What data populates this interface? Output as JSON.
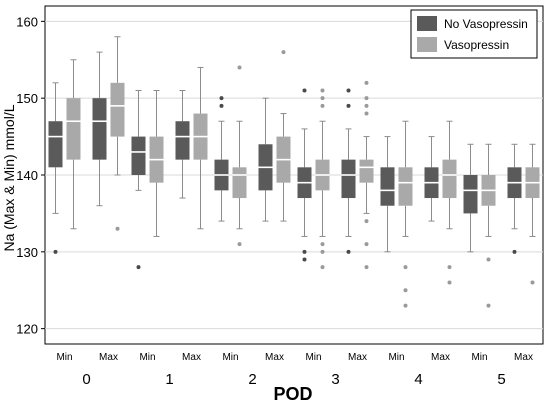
{
  "chart_data": {
    "type": "box",
    "ylabel": "Na (Max & Min) mmol/L",
    "xlabel": "POD",
    "ylim": [
      118,
      162
    ],
    "yticks": [
      120,
      130,
      140,
      150,
      160
    ],
    "grid": true,
    "legend_position": "top-right",
    "colors": {
      "No Vasopressin": "#5a5a5a",
      "Vasopressin": "#a9a9a9"
    },
    "groups": [
      "0",
      "1",
      "2",
      "3",
      "4",
      "5"
    ],
    "subgroups": [
      "Min",
      "Max"
    ],
    "series": [
      {
        "name": "No Vasopressin",
        "boxes": [
          {
            "group": "0",
            "sub": "Min",
            "lw": 135,
            "q1": 141,
            "med": 145,
            "q3": 147,
            "uw": 152,
            "outliers": [
              130
            ]
          },
          {
            "group": "0",
            "sub": "Max",
            "lw": 136,
            "q1": 142,
            "med": 147,
            "q3": 150,
            "uw": 156,
            "outliers": []
          },
          {
            "group": "1",
            "sub": "Min",
            "lw": 138,
            "q1": 140,
            "med": 143,
            "q3": 145,
            "uw": 151,
            "outliers": [
              128
            ]
          },
          {
            "group": "1",
            "sub": "Max",
            "lw": 137,
            "q1": 142,
            "med": 145,
            "q3": 147,
            "uw": 151,
            "outliers": []
          },
          {
            "group": "2",
            "sub": "Min",
            "lw": 134,
            "q1": 138,
            "med": 140,
            "q3": 142,
            "uw": 147,
            "outliers": [
              149,
              150
            ]
          },
          {
            "group": "2",
            "sub": "Max",
            "lw": 134,
            "q1": 138,
            "med": 141,
            "q3": 144,
            "uw": 150,
            "outliers": []
          },
          {
            "group": "3",
            "sub": "Min",
            "lw": 132,
            "q1": 137,
            "med": 139,
            "q3": 141,
            "uw": 146,
            "outliers": [
              129,
              130,
              151
            ]
          },
          {
            "group": "3",
            "sub": "Max",
            "lw": 132,
            "q1": 137,
            "med": 140,
            "q3": 142,
            "uw": 146,
            "outliers": [
              130,
              149,
              151
            ]
          },
          {
            "group": "4",
            "sub": "Min",
            "lw": 130,
            "q1": 136,
            "med": 138,
            "q3": 141,
            "uw": 145,
            "outliers": []
          },
          {
            "group": "4",
            "sub": "Max",
            "lw": 134,
            "q1": 137,
            "med": 139,
            "q3": 141,
            "uw": 145,
            "outliers": []
          },
          {
            "group": "5",
            "sub": "Min",
            "lw": 130,
            "q1": 135,
            "med": 138,
            "q3": 140,
            "uw": 144,
            "outliers": []
          },
          {
            "group": "5",
            "sub": "Max",
            "lw": 133,
            "q1": 137,
            "med": 139,
            "q3": 141,
            "uw": 144,
            "outliers": [
              130
            ]
          }
        ]
      },
      {
        "name": "Vasopressin",
        "boxes": [
          {
            "group": "0",
            "sub": "Min",
            "lw": 133,
            "q1": 142,
            "med": 147,
            "q3": 150,
            "uw": 155,
            "outliers": []
          },
          {
            "group": "0",
            "sub": "Max",
            "lw": 140,
            "q1": 145,
            "med": 149,
            "q3": 152,
            "uw": 158,
            "outliers": [
              133
            ]
          },
          {
            "group": "1",
            "sub": "Min",
            "lw": 132,
            "q1": 139,
            "med": 142,
            "q3": 145,
            "uw": 151,
            "outliers": []
          },
          {
            "group": "1",
            "sub": "Max",
            "lw": 133,
            "q1": 142,
            "med": 145,
            "q3": 148,
            "uw": 154,
            "outliers": []
          },
          {
            "group": "2",
            "sub": "Min",
            "lw": 133,
            "q1": 137,
            "med": 140,
            "q3": 141,
            "uw": 147,
            "outliers": [
              131,
              154
            ]
          },
          {
            "group": "2",
            "sub": "Max",
            "lw": 134,
            "q1": 139,
            "med": 142,
            "q3": 145,
            "uw": 148,
            "outliers": [
              156
            ]
          },
          {
            "group": "3",
            "sub": "Min",
            "lw": 132,
            "q1": 138,
            "med": 140,
            "q3": 142,
            "uw": 147,
            "outliers": [
              128,
              130,
              131,
              149,
              150,
              151
            ]
          },
          {
            "group": "3",
            "sub": "Max",
            "lw": 135,
            "q1": 139,
            "med": 141,
            "q3": 142,
            "uw": 145,
            "outliers": [
              128,
              131,
              134,
              148,
              149,
              150,
              152
            ]
          },
          {
            "group": "4",
            "sub": "Min",
            "lw": 132,
            "q1": 136,
            "med": 139,
            "q3": 141,
            "uw": 147,
            "outliers": [
              123,
              125,
              128
            ]
          },
          {
            "group": "4",
            "sub": "Max",
            "lw": 133,
            "q1": 137,
            "med": 140,
            "q3": 142,
            "uw": 147,
            "outliers": [
              126,
              128
            ]
          },
          {
            "group": "5",
            "sub": "Min",
            "lw": 132,
            "q1": 136,
            "med": 138,
            "q3": 140,
            "uw": 144,
            "outliers": [
              123,
              129
            ]
          },
          {
            "group": "5",
            "sub": "Max",
            "lw": 132,
            "q1": 137,
            "med": 139,
            "q3": 141,
            "uw": 144,
            "outliers": [
              126
            ]
          }
        ]
      }
    ]
  }
}
